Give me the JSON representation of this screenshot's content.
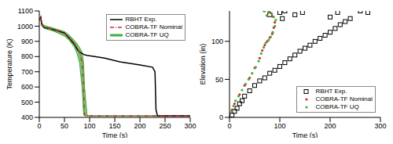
{
  "chart_data": [
    {
      "type": "line",
      "x_label": "Time (s)",
      "y_label": "Temperature (K)",
      "xlim": [
        0,
        300
      ],
      "xticks": [
        0,
        50,
        100,
        150,
        200,
        250,
        300
      ],
      "ylim": [
        400,
        1100
      ],
      "yticks": [
        400,
        500,
        600,
        700,
        800,
        900,
        1000,
        1100
      ],
      "legend": "upper right",
      "x": [
        0,
        3,
        5,
        10,
        20,
        30,
        40,
        50,
        60,
        70,
        75,
        80,
        85,
        88,
        90,
        95,
        100,
        130,
        160,
        200,
        225,
        230,
        232,
        235,
        250,
        300
      ],
      "series": [
        {
          "name": "RBHT Exp.",
          "color": "#000000",
          "line_style": "solid",
          "values": [
            1040,
            1060,
            1010,
            990,
            985,
            975,
            965,
            955,
            920,
            880,
            850,
            830,
            820,
            815,
            812,
            808,
            805,
            790,
            765,
            745,
            730,
            700,
            450,
            410,
            410,
            410
          ]
        },
        {
          "name": "COBRA-TF Nominal",
          "color": "#d62728",
          "line_style": "dashdot",
          "values": [
            1040,
            1050,
            1010,
            995,
            985,
            975,
            965,
            950,
            925,
            885,
            860,
            830,
            760,
            600,
            415,
            410,
            410,
            410,
            410,
            410,
            410,
            410,
            410,
            410,
            410,
            410
          ]
        },
        {
          "name": "COBRA-TF UQ",
          "color": "#3cb043",
          "type": "area",
          "lower": [
            1035,
            1045,
            1000,
            985,
            975,
            965,
            950,
            935,
            905,
            860,
            820,
            760,
            600,
            420,
            410,
            410,
            410,
            410,
            410,
            410,
            410,
            410,
            410,
            410,
            410,
            410
          ],
          "upper": [
            1045,
            1055,
            1020,
            1005,
            995,
            985,
            975,
            965,
            940,
            905,
            885,
            860,
            830,
            760,
            600,
            415,
            410,
            410,
            410,
            410,
            410,
            410,
            410,
            410,
            410,
            410
          ]
        }
      ]
    },
    {
      "type": "scatter",
      "x_label": "Time (s)",
      "y_label": "Elevation (in)",
      "xlim": [
        0,
        300
      ],
      "xticks": [
        0,
        100,
        200,
        300
      ],
      "ylim": [
        0,
        140
      ],
      "yticks": [
        0,
        50,
        100
      ],
      "legend": "lower right",
      "series": [
        {
          "name": "RBHT Exp.",
          "color": "#000000",
          "marker": "square",
          "x": [
            5,
            10,
            15,
            20,
            25,
            30,
            40,
            50,
            60,
            70,
            80,
            90,
            100,
            110,
            120,
            130,
            140,
            150,
            160,
            170,
            180,
            190,
            200,
            210,
            220,
            230,
            240,
            80,
            100,
            105,
            110,
            130,
            145,
            200,
            215,
            260,
            275
          ],
          "values": [
            3,
            8,
            12,
            18,
            22,
            28,
            35,
            42,
            48,
            52,
            58,
            62,
            67,
            72,
            77,
            82,
            87,
            91,
            95,
            100,
            104,
            108,
            112,
            117,
            122,
            126,
            130,
            135,
            138,
            130,
            140,
            135,
            138,
            132,
            138,
            140,
            138
          ]
        },
        {
          "name": "COBRA-TF Nominal",
          "color": "#d62728",
          "marker": "circle",
          "x": [
            5,
            10,
            20,
            30,
            40,
            50,
            60,
            65,
            70,
            75,
            80,
            85,
            88,
            90,
            85,
            80,
            70
          ],
          "values": [
            10,
            18,
            30,
            42,
            52,
            65,
            78,
            88,
            95,
            100,
            105,
            110,
            118,
            125,
            133,
            138,
            140
          ]
        },
        {
          "name": "COBRA-TF UQ",
          "color": "#3cb043",
          "marker": "circle",
          "x": [
            4,
            8,
            12,
            18,
            25,
            32,
            38,
            45,
            52,
            58,
            63,
            68,
            72,
            78,
            82,
            86,
            90,
            92,
            88,
            84,
            78,
            74,
            68
          ],
          "values": [
            8,
            15,
            22,
            28,
            36,
            44,
            50,
            58,
            66,
            74,
            84,
            92,
            98,
            102,
            106,
            112,
            120,
            128,
            132,
            136,
            139,
            134,
            140
          ]
        }
      ]
    }
  ]
}
